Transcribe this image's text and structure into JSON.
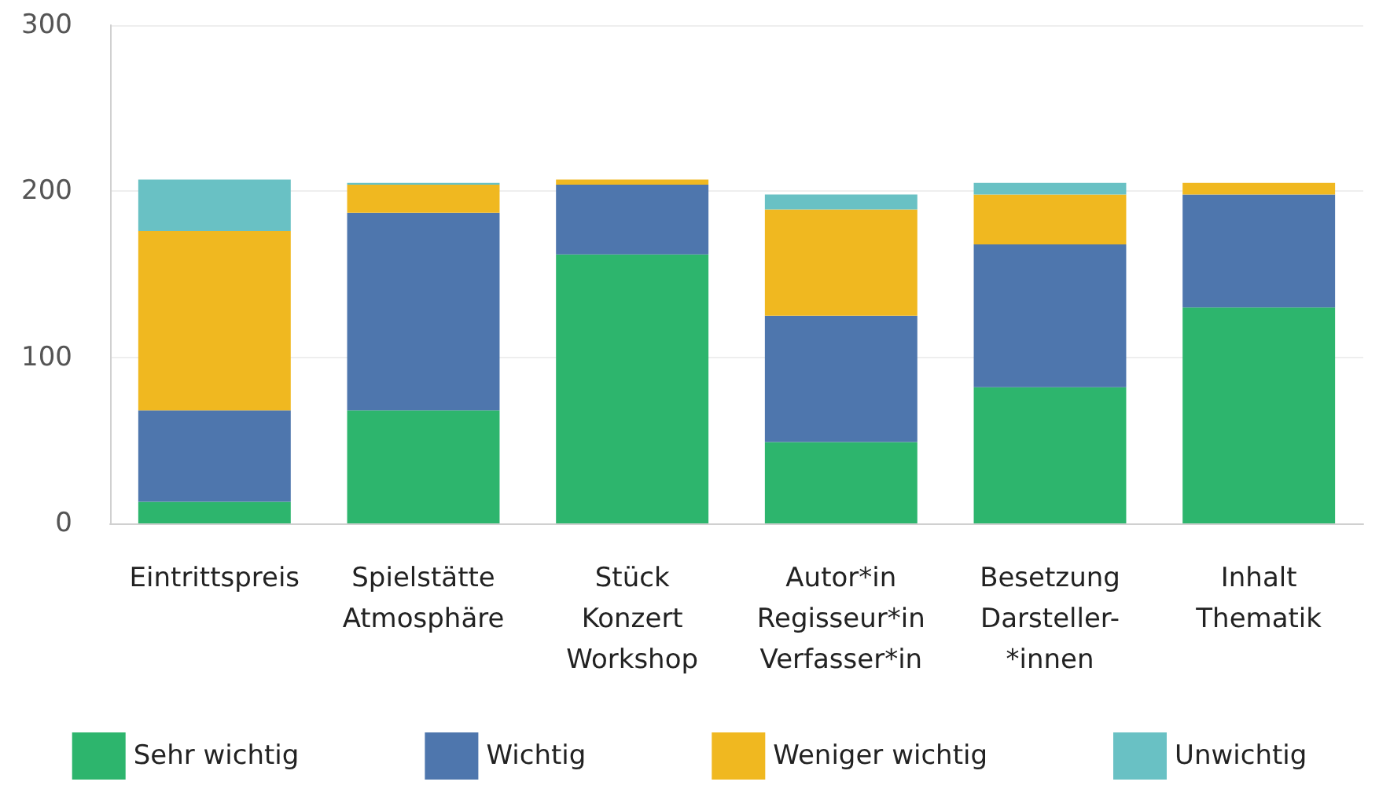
{
  "chart_data": {
    "type": "bar",
    "stacked": true,
    "categories": [
      "Eintrittspreis",
      "Spielstätte\nAtmosphäre",
      "Stück\nKonzert\nWorkshop",
      "Autor*in\nRegisseur*in\nVerfasser*in",
      "Besetzung\nDarsteller-\n*innen",
      "Inhalt\nThematik"
    ],
    "series": [
      {
        "name": "Sehr wichtig",
        "color": "#2db56d",
        "values": [
          13,
          68,
          162,
          49,
          82,
          130
        ]
      },
      {
        "name": "Wichtig",
        "color": "#4e76ad",
        "values": [
          55,
          119,
          42,
          76,
          86,
          68
        ]
      },
      {
        "name": "Weniger wichtig",
        "color": "#f0b820",
        "values": [
          108,
          17,
          3,
          64,
          30,
          7
        ]
      },
      {
        "name": "Unwichtig",
        "color": "#69c1c4",
        "values": [
          31,
          1,
          0,
          9,
          7,
          0
        ]
      }
    ],
    "ylim": [
      0,
      300
    ],
    "yticks": [
      0,
      100,
      200,
      300
    ],
    "grid": "y",
    "legend": "bottom"
  }
}
